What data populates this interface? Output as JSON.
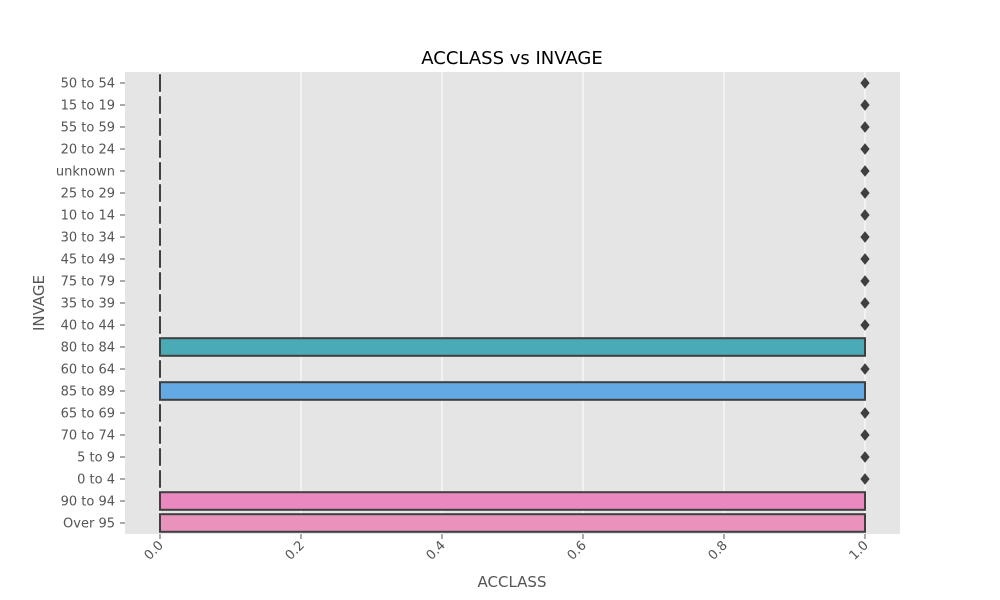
{
  "chart_data": {
    "type": "box",
    "orientation": "horizontal",
    "title": "ACCLASS vs INVAGE",
    "xlabel": "ACCLASS",
    "ylabel": "INVAGE",
    "xlim": [
      -0.06,
      1.05
    ],
    "xticks": [
      0.0,
      0.2,
      0.4,
      0.6,
      0.8,
      1.0
    ],
    "xtick_labels": [
      "0.0",
      "0.2",
      "0.4",
      "0.6",
      "0.8",
      "1.0"
    ],
    "grid": true,
    "categories": [
      {
        "label": "50 to 54",
        "q1": 0,
        "median": 0,
        "q3": 0,
        "whisker_low": 0,
        "whisker_high": 0,
        "outliers": [
          1
        ],
        "color": "#e24a33"
      },
      {
        "label": "15 to 19",
        "q1": 0,
        "median": 0,
        "q3": 0,
        "whisker_low": 0,
        "whisker_high": 0,
        "outliers": [
          1
        ],
        "color": "#e5572b"
      },
      {
        "label": "55 to 59",
        "q1": 0,
        "median": 0,
        "q3": 0,
        "whisker_low": 0,
        "whisker_high": 0,
        "outliers": [
          1
        ],
        "color": "#d9692f"
      },
      {
        "label": "20 to 24",
        "q1": 0,
        "median": 0,
        "q3": 0,
        "whisker_low": 0,
        "whisker_high": 0,
        "outliers": [
          1
        ],
        "color": "#c97c35"
      },
      {
        "label": "unknown",
        "q1": 0,
        "median": 0,
        "q3": 0,
        "whisker_low": 0,
        "whisker_high": 0,
        "outliers": [
          1
        ],
        "color": "#b98c3a"
      },
      {
        "label": "25 to 29",
        "q1": 0,
        "median": 0,
        "q3": 0,
        "whisker_low": 0,
        "whisker_high": 0,
        "outliers": [
          1
        ],
        "color": "#a89a3e"
      },
      {
        "label": "10 to 14",
        "q1": 0,
        "median": 0,
        "q3": 0,
        "whisker_low": 0,
        "whisker_high": 0,
        "outliers": [
          1
        ],
        "color": "#94a742"
      },
      {
        "label": "30 to 34",
        "q1": 0,
        "median": 0,
        "q3": 0,
        "whisker_low": 0,
        "whisker_high": 0,
        "outliers": [
          1
        ],
        "color": "#7bb247"
      },
      {
        "label": "45 to 49",
        "q1": 0,
        "median": 0,
        "q3": 0,
        "whisker_low": 0,
        "whisker_high": 0,
        "outliers": [
          1
        ],
        "color": "#5cb95a"
      },
      {
        "label": "75 to 79",
        "q1": 0,
        "median": 0,
        "q3": 0,
        "whisker_low": 0,
        "whisker_high": 0,
        "outliers": [
          1
        ],
        "color": "#4bb87a"
      },
      {
        "label": "35 to 39",
        "q1": 0,
        "median": 0,
        "q3": 0,
        "whisker_low": 0,
        "whisker_high": 0,
        "outliers": [
          1
        ],
        "color": "#48b594"
      },
      {
        "label": "40 to 44",
        "q1": 0,
        "median": 0,
        "q3": 0,
        "whisker_low": 0,
        "whisker_high": 0,
        "outliers": [
          1
        ],
        "color": "#49b1a7"
      },
      {
        "label": "80 to 84",
        "q1": 0,
        "median": 0,
        "q3": 1,
        "whisker_low": 0,
        "whisker_high": 1,
        "outliers": [],
        "color": "#4aabb6"
      },
      {
        "label": "60 to 64",
        "q1": 0,
        "median": 0,
        "q3": 0,
        "whisker_low": 0,
        "whisker_high": 0,
        "outliers": [
          1
        ],
        "color": "#4ea6c4"
      },
      {
        "label": "85 to 89",
        "q1": 0,
        "median": 0,
        "q3": 1,
        "whisker_low": 0,
        "whisker_high": 1,
        "outliers": [],
        "color": "#63a9e3"
      },
      {
        "label": "65 to 69",
        "q1": 0,
        "median": 0,
        "q3": 0,
        "whisker_low": 0,
        "whisker_high": 0,
        "outliers": [
          1
        ],
        "color": "#8a9ee8"
      },
      {
        "label": "70 to 74",
        "q1": 0,
        "median": 0,
        "q3": 0,
        "whisker_low": 0,
        "whisker_high": 0,
        "outliers": [
          1
        ],
        "color": "#b08fe6"
      },
      {
        "label": "5 to 9",
        "q1": 0,
        "median": 0,
        "q3": 0,
        "whisker_low": 0,
        "whisker_high": 0,
        "outliers": [
          1
        ],
        "color": "#d183d9"
      },
      {
        "label": "0 to 4",
        "q1": 0,
        "median": 0,
        "q3": 0,
        "whisker_low": 0,
        "whisker_high": 0,
        "outliers": [
          1
        ],
        "color": "#e57fc6"
      },
      {
        "label": "90 to 94",
        "q1": 0,
        "median": 0,
        "q3": 1,
        "whisker_low": 0,
        "whisker_high": 1,
        "outliers": [],
        "color": "#ea88c0"
      },
      {
        "label": "Over 95",
        "q1": 0,
        "median": 0,
        "q3": 1,
        "whisker_low": 0,
        "whisker_high": 1,
        "outliers": [],
        "color": "#e992bb"
      }
    ],
    "colors": {
      "plot_background": "#e5e5e5",
      "grid": "#ffffff",
      "box_edge": "#3f3f3f",
      "outlier": "#3f3f3f"
    }
  }
}
